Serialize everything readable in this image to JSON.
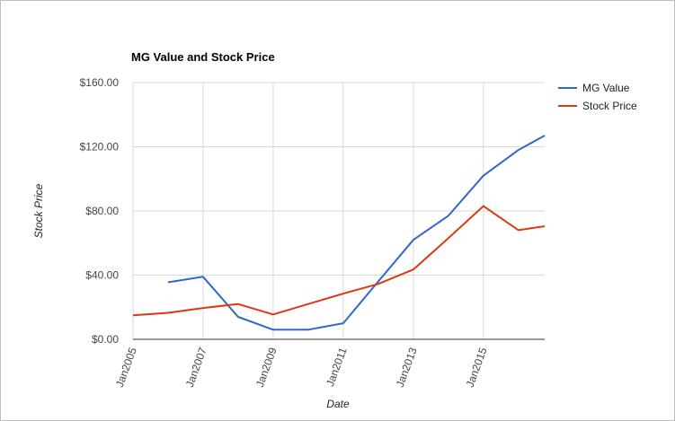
{
  "chart_data": {
    "type": "line",
    "title": "MG Value and Stock Price",
    "xlabel": "Date",
    "ylabel": "Stock Price",
    "x_ticks": [
      "Jan2005",
      "Jan2007",
      "Jan2009",
      "Jan2011",
      "Jan2013",
      "Jan2015"
    ],
    "xlim": [
      "2005-01-01",
      "2016-10-01"
    ],
    "y_ticks": [
      "$0.00",
      "$40.00",
      "$80.00",
      "$120.00",
      "$160.00"
    ],
    "ylim": [
      0,
      160
    ],
    "grid": true,
    "legend_position": "right",
    "series": [
      {
        "name": "MG Value",
        "color": "#3366cc",
        "points": [
          {
            "x": "2006-01-01",
            "y": 35.5
          },
          {
            "x": "2007-01-01",
            "y": 39
          },
          {
            "x": "2008-01-01",
            "y": 14
          },
          {
            "x": "2009-01-01",
            "y": 6
          },
          {
            "x": "2010-01-01",
            "y": 6
          },
          {
            "x": "2011-01-01",
            "y": 10
          },
          {
            "x": "2012-01-01",
            "y": 36
          },
          {
            "x": "2013-01-01",
            "y": 62
          },
          {
            "x": "2014-01-01",
            "y": 77
          },
          {
            "x": "2015-01-01",
            "y": 102
          },
          {
            "x": "2016-01-01",
            "y": 118
          },
          {
            "x": "2016-10-01",
            "y": 127
          }
        ]
      },
      {
        "name": "Stock Price",
        "color": "#dc3912",
        "points": [
          {
            "x": "2005-01-01",
            "y": 15
          },
          {
            "x": "2006-01-01",
            "y": 16.5
          },
          {
            "x": "2007-01-01",
            "y": 19.5
          },
          {
            "x": "2008-01-01",
            "y": 22
          },
          {
            "x": "2009-01-01",
            "y": 15.5
          },
          {
            "x": "2010-01-01",
            "y": 22
          },
          {
            "x": "2011-01-01",
            "y": 28.5
          },
          {
            "x": "2012-01-01",
            "y": 34.5
          },
          {
            "x": "2013-01-01",
            "y": 43.5
          },
          {
            "x": "2014-01-01",
            "y": 63
          },
          {
            "x": "2015-01-01",
            "y": 83
          },
          {
            "x": "2016-01-01",
            "y": 68
          },
          {
            "x": "2016-10-01",
            "y": 70.5
          }
        ]
      }
    ]
  }
}
